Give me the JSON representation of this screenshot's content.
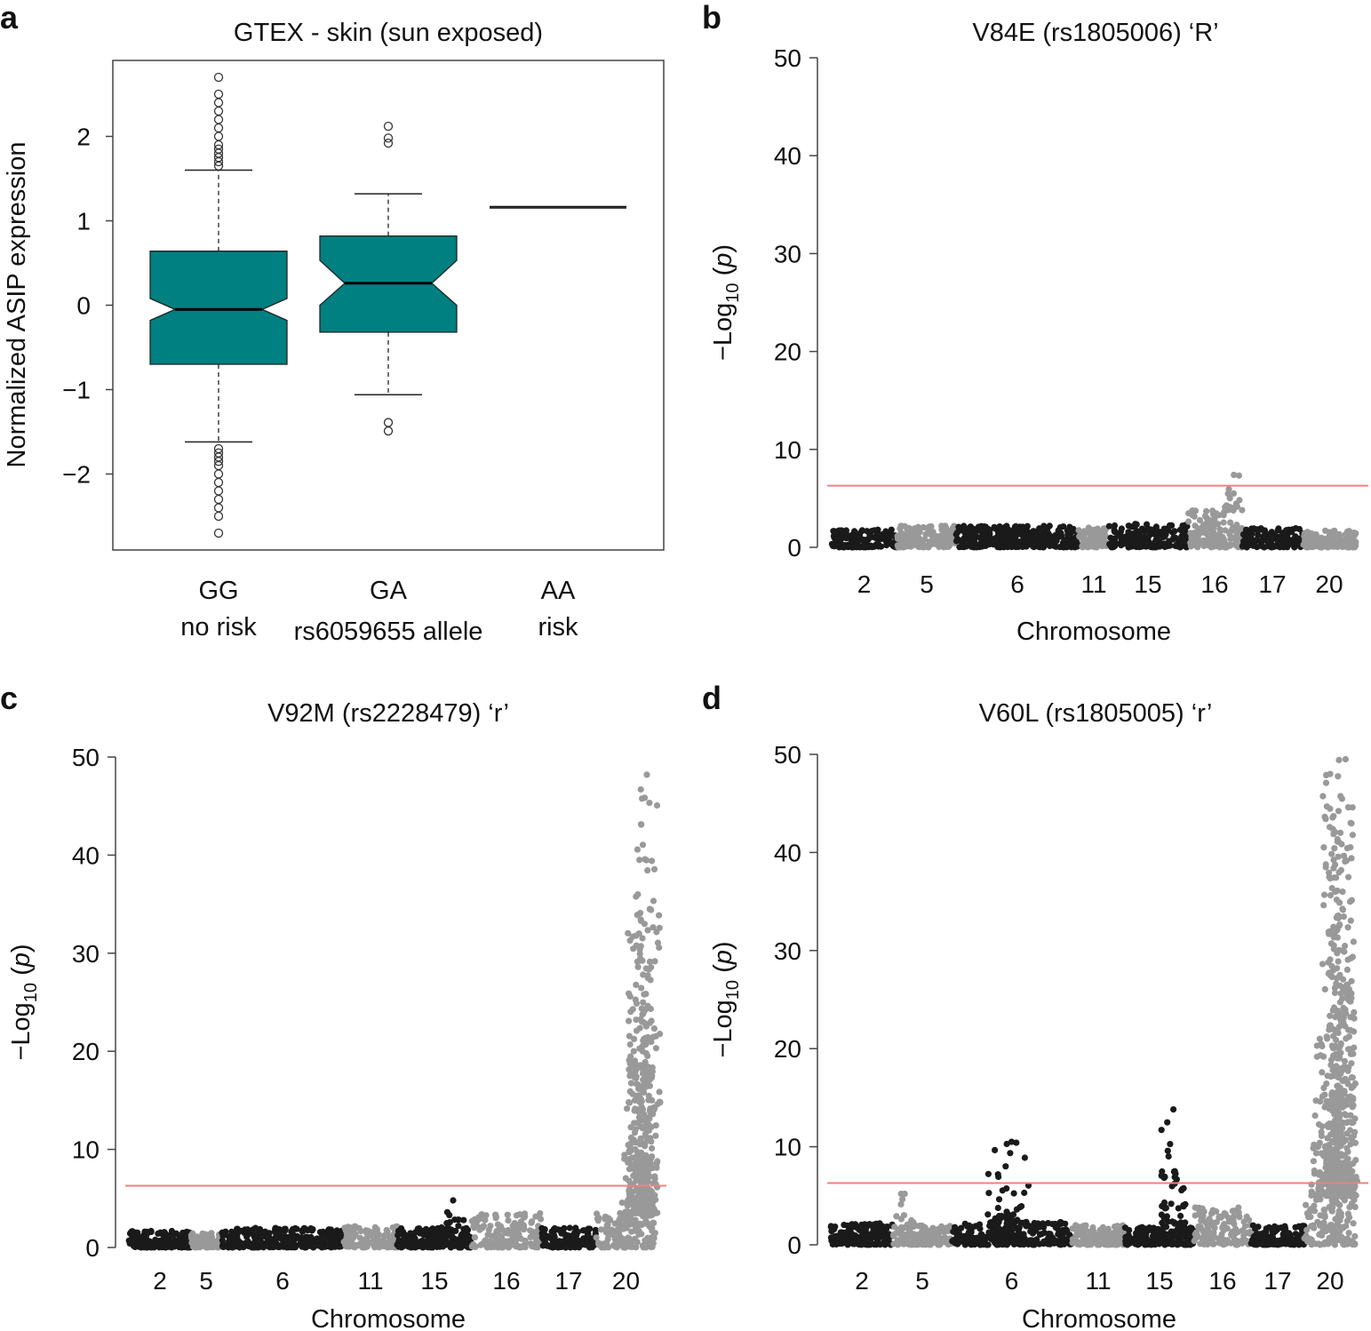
{
  "figure": {
    "panels": [
      "a",
      "b",
      "c",
      "d"
    ]
  },
  "chart_data": [
    {
      "id": "a",
      "type": "box",
      "title": "GTEX - skin (sun exposed)",
      "ylabel": "Normalized ASIP expression",
      "xlabel": "rs6059655 allele",
      "ylim": [
        -2.9,
        2.9
      ],
      "yticks": [
        -2,
        -1,
        0,
        1,
        2
      ],
      "ytick_labels": [
        "−2",
        "−1",
        "0",
        "1",
        "2"
      ],
      "box_color": "#008080",
      "groups": [
        {
          "top": "GG",
          "bottom": "no risk",
          "q1": -0.7,
          "median": -0.05,
          "q3": 0.64,
          "whisker_low": -1.62,
          "whisker_high": 1.6,
          "notch_low": -0.18,
          "notch_high": 0.08,
          "outliers": [
            1.65,
            1.7,
            1.75,
            1.8,
            1.85,
            1.9,
            2.0,
            2.1,
            2.2,
            2.3,
            2.4,
            2.5,
            2.7,
            -1.7,
            -1.75,
            -1.8,
            -1.85,
            -1.9,
            -2.0,
            -2.1,
            -2.2,
            -2.3,
            -2.4,
            -2.5,
            -2.7
          ]
        },
        {
          "top": "GA",
          "bottom": "rs6059655 allele",
          "q1": -0.32,
          "median": 0.26,
          "q3": 0.82,
          "whisker_low": -1.06,
          "whisker_high": 1.32,
          "notch_low": 0.0,
          "notch_high": 0.53,
          "outliers": [
            2.12,
            1.98,
            1.92,
            -1.39,
            -1.49
          ]
        },
        {
          "top": "AA",
          "bottom": "risk",
          "q1": 1.16,
          "median": 1.16,
          "q3": 1.16,
          "whisker_low": 1.16,
          "whisker_high": 1.16,
          "notch_low": 1.16,
          "notch_high": 1.16,
          "outliers": []
        }
      ]
    },
    {
      "id": "b",
      "type": "scatter",
      "title": "V84E (rs1805006) ‘R’",
      "ylabel": "−Log10 (p)",
      "xlabel": "Chromosome",
      "ylim": [
        0,
        50
      ],
      "yticks": [
        0,
        10,
        20,
        30,
        40,
        50
      ],
      "threshold": 6.3,
      "xtick_labels": [
        "2",
        "5",
        "6",
        "11",
        "15",
        "16",
        "17",
        "20"
      ],
      "segments": [
        {
          "label": "2",
          "shade": "dark",
          "base": 1.8,
          "peaks": []
        },
        {
          "label": "5",
          "shade": "light",
          "base": 2.2,
          "peaks": []
        },
        {
          "label": "6",
          "shade": "dark",
          "base": 2.2,
          "peaks": []
        },
        {
          "label": "11",
          "shade": "light",
          "base": 2.0,
          "peaks": []
        },
        {
          "label": "15",
          "shade": "dark",
          "base": 2.4,
          "peaks": []
        },
        {
          "label": "16",
          "shade": "light",
          "base": 3.8,
          "peaks": [
            [
              0.85,
              7.4
            ]
          ]
        },
        {
          "label": "17",
          "shade": "dark",
          "base": 2.0,
          "peaks": []
        },
        {
          "label": "20",
          "shade": "light",
          "base": 1.7,
          "peaks": []
        }
      ]
    },
    {
      "id": "c",
      "type": "scatter",
      "title": "V92M (rs2228479) ‘r’",
      "ylabel": "−Log10 (p)",
      "xlabel": "Chromosome",
      "ylim": [
        0,
        50
      ],
      "yticks": [
        0,
        10,
        20,
        30,
        40,
        50
      ],
      "threshold": 6.3,
      "xtick_labels": [
        "2",
        "5",
        "6",
        "11",
        "15",
        "16",
        "17",
        "20"
      ],
      "segments": [
        {
          "label": "2",
          "shade": "dark",
          "base": 1.7,
          "peaks": []
        },
        {
          "label": "5",
          "shade": "light",
          "base": 1.5,
          "peaks": []
        },
        {
          "label": "6",
          "shade": "dark",
          "base": 2.0,
          "peaks": []
        },
        {
          "label": "11",
          "shade": "light",
          "base": 2.2,
          "peaks": []
        },
        {
          "label": "15",
          "shade": "dark",
          "base": 2.0,
          "peaks": [
            [
              0.75,
              4.8
            ]
          ]
        },
        {
          "label": "16",
          "shade": "light",
          "base": 3.5,
          "peaks": []
        },
        {
          "label": "17",
          "shade": "dark",
          "base": 2.0,
          "peaks": []
        },
        {
          "label": "20",
          "shade": "light",
          "base": 3.5,
          "peaks": [
            [
              0.85,
              48.2
            ],
            [
              0.7,
              36.0
            ],
            [
              0.72,
              32.0
            ],
            [
              0.9,
              34.5
            ],
            [
              0.8,
              24.0
            ],
            [
              0.78,
              20.0
            ],
            [
              0.65,
              15.0
            ],
            [
              0.6,
              10.0
            ]
          ]
        }
      ]
    },
    {
      "id": "d",
      "type": "scatter",
      "title": "V60L (rs1805005) ‘r’",
      "ylabel": "−Log10 (p)",
      "xlabel": "Chromosome",
      "ylim": [
        0,
        50
      ],
      "yticks": [
        0,
        10,
        20,
        30,
        40,
        50
      ],
      "threshold": 6.3,
      "xtick_labels": [
        "2",
        "5",
        "6",
        "11",
        "15",
        "16",
        "17",
        "20"
      ],
      "segments": [
        {
          "label": "2",
          "shade": "dark",
          "base": 2.2,
          "peaks": []
        },
        {
          "label": "5",
          "shade": "light",
          "base": 2.0,
          "peaks": [
            [
              0.2,
              5.2
            ]
          ]
        },
        {
          "label": "6",
          "shade": "dark",
          "base": 2.3,
          "peaks": [
            [
              0.5,
              10.5
            ],
            [
              0.45,
              8.0
            ]
          ]
        },
        {
          "label": "11",
          "shade": "light",
          "base": 2.0,
          "peaks": []
        },
        {
          "label": "15",
          "shade": "dark",
          "base": 1.8,
          "peaks": [
            [
              0.7,
              13.8
            ],
            [
              0.72,
              7.5
            ]
          ]
        },
        {
          "label": "16",
          "shade": "light",
          "base": 3.8,
          "peaks": []
        },
        {
          "label": "17",
          "shade": "dark",
          "base": 2.0,
          "peaks": []
        },
        {
          "label": "20",
          "shade": "light",
          "base": 5.0,
          "peaks": [
            [
              0.8,
              49.5
            ],
            [
              0.5,
              48.0
            ],
            [
              0.7,
              42.0
            ],
            [
              0.6,
              36.0
            ],
            [
              0.75,
              30.0
            ],
            [
              0.85,
              25.0
            ],
            [
              0.55,
              22.0
            ],
            [
              0.3,
              21.0
            ],
            [
              0.65,
              15.0
            ],
            [
              0.4,
              10.0
            ]
          ]
        }
      ]
    }
  ]
}
